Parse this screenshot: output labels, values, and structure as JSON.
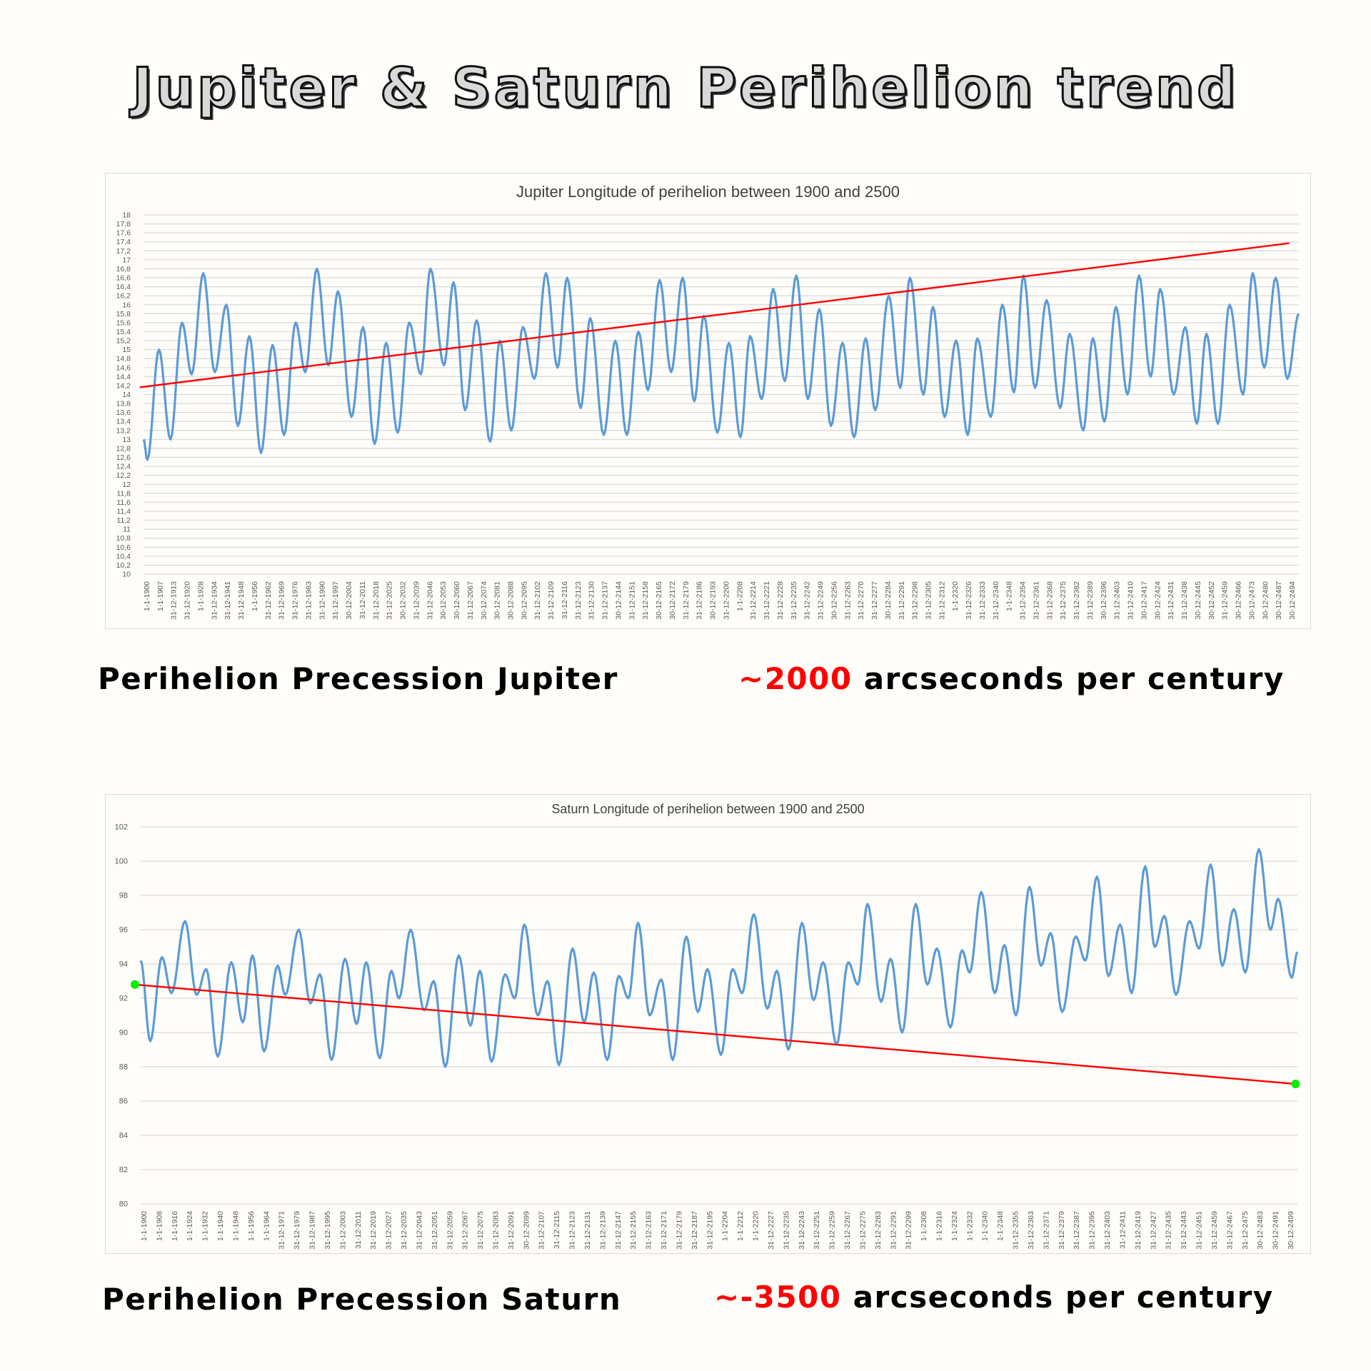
{
  "title": "Jupiter & Saturn Perihelion trend",
  "captions": {
    "jupiter_label": "Perihelion Precession Jupiter",
    "jupiter_tilde": "~",
    "jupiter_value": "2000",
    "jupiter_unit": "arcseconds per century",
    "saturn_label": "Perihelion Precession Saturn",
    "saturn_tilde": "~",
    "saturn_value": "-3500",
    "saturn_unit": "arcseconds per century"
  },
  "colors": {
    "series": "#5b9bd5",
    "trend": "#ff0000",
    "endpoints": "#00ee00",
    "highlight": "#ff0000",
    "grid": "#d9d9d9"
  },
  "chart_data": [
    {
      "type": "line",
      "title": "Jupiter Longitude of perihelion between 1900 and 2500",
      "ylim": [
        10,
        18
      ],
      "grid": true,
      "y_tick_labels": [
        "10",
        "10,2",
        "10,4",
        "10,6",
        "10,8",
        "11",
        "11,2",
        "11,4",
        "11,6",
        "11,8",
        "12",
        "12,2",
        "12,4",
        "12,6",
        "12,8",
        "13",
        "13,2",
        "13,4",
        "13,6",
        "13,8",
        "14",
        "14,2",
        "14,4",
        "14,6",
        "14,8",
        "15",
        "15,2",
        "15,4",
        "15,6",
        "15,8",
        "16",
        "16,2",
        "16,4",
        "16,6",
        "16,8",
        "17",
        "17,2",
        "17,4",
        "17,6",
        "17,8",
        "18"
      ],
      "x_tick_labels": [
        "1-1-1900",
        "1-1-1907",
        "31-12-1913",
        "31-12-1920",
        "1-1-1928",
        "31-12-1934",
        "31-12-1941",
        "31-12-1948",
        "1-1-1956",
        "31-12-1962",
        "31-12-1969",
        "31-12-1976",
        "31-12-1983",
        "31-12-1990",
        "31-12-1997",
        "30-12-2004",
        "31-12-2011",
        "31-12-2018",
        "31-12-2025",
        "30-12-2032",
        "31-12-2039",
        "31-12-2046",
        "30-12-2053",
        "30-12-2060",
        "31-12-2067",
        "30-12-2074",
        "30-12-2081",
        "30-12-2088",
        "30-12-2095",
        "31-12-2102",
        "31-12-2109",
        "31-12-2116",
        "31-12-2123",
        "31-12-2130",
        "31-12-2137",
        "30-12-2144",
        "31-12-2151",
        "31-12-2158",
        "30-12-2165",
        "30-12-2172",
        "31-12-2179",
        "31-12-2186",
        "30-12-2193",
        "31-12-2200",
        "1-1-2208",
        "31-12-2214",
        "31-12-2221",
        "31-12-2228",
        "31-12-2235",
        "31-12-2242",
        "31-12-2249",
        "30-12-2256",
        "31-12-2263",
        "31-12-2270",
        "31-12-2277",
        "30-12-2284",
        "31-12-2291",
        "31-12-2298",
        "31-12-2305",
        "31-12-2312",
        "1-1-2320",
        "31-12-2326",
        "31-12-2333",
        "31-12-2340",
        "1-1-2348",
        "31-12-2354",
        "31-12-2361",
        "31-12-2368",
        "31-12-2375",
        "31-12-2382",
        "31-12-2389",
        "30-12-2396",
        "31-12-2403",
        "31-12-2410",
        "30-12-2417",
        "30-12-2424",
        "31-12-2431",
        "31-12-2438",
        "30-12-2445",
        "30-12-2452",
        "31-12-2459",
        "30-12-2466",
        "30-12-2473",
        "30-12-2480",
        "30-12-2487",
        "30-12-2494"
      ],
      "xlim": [
        1900,
        2500
      ],
      "series": [
        {
          "points": [
            [
              1900,
              13.0
            ],
            [
              1902,
              12.55
            ],
            [
              1908,
              15.0
            ],
            [
              1914,
              13.0
            ],
            [
              1920,
              15.6
            ],
            [
              1925,
              14.45
            ],
            [
              1931,
              16.7
            ],
            [
              1937,
              14.5
            ],
            [
              1943,
              16.0
            ],
            [
              1949,
              13.3
            ],
            [
              1955,
              15.3
            ],
            [
              1961,
              12.7
            ],
            [
              1967,
              15.1
            ],
            [
              1973,
              13.1
            ],
            [
              1979,
              15.6
            ],
            [
              1984,
              14.5
            ],
            [
              1990,
              16.8
            ],
            [
              1996,
              14.65
            ],
            [
              2001,
              16.3
            ],
            [
              2008,
              13.5
            ],
            [
              2014,
              15.5
            ],
            [
              2020,
              12.9
            ],
            [
              2026,
              15.15
            ],
            [
              2032,
              13.15
            ],
            [
              2038,
              15.6
            ],
            [
              2044,
              14.45
            ],
            [
              2049,
              16.8
            ],
            [
              2056,
              14.65
            ],
            [
              2061,
              16.5
            ],
            [
              2067,
              13.65
            ],
            [
              2073,
              15.65
            ],
            [
              2080,
              12.95
            ],
            [
              2085,
              15.2
            ],
            [
              2091,
              13.2
            ],
            [
              2097,
              15.5
            ],
            [
              2103,
              14.35
            ],
            [
              2109,
              16.7
            ],
            [
              2115,
              14.6
            ],
            [
              2120,
              16.6
            ],
            [
              2127,
              13.7
            ],
            [
              2132,
              15.7
            ],
            [
              2139,
              13.1
            ],
            [
              2145,
              15.2
            ],
            [
              2151,
              13.1
            ],
            [
              2157,
              15.4
            ],
            [
              2162,
              14.1
            ],
            [
              2168,
              16.55
            ],
            [
              2174,
              14.5
            ],
            [
              2180,
              16.6
            ],
            [
              2186,
              13.85
            ],
            [
              2191,
              15.75
            ],
            [
              2198,
              13.15
            ],
            [
              2204,
              15.15
            ],
            [
              2210,
              13.05
            ],
            [
              2215,
              15.3
            ],
            [
              2221,
              13.9
            ],
            [
              2227,
              16.35
            ],
            [
              2233,
              14.3
            ],
            [
              2239,
              16.65
            ],
            [
              2245,
              13.9
            ],
            [
              2251,
              15.9
            ],
            [
              2257,
              13.3
            ],
            [
              2263,
              15.15
            ],
            [
              2269,
              13.05
            ],
            [
              2275,
              15.25
            ],
            [
              2280,
              13.65
            ],
            [
              2287,
              16.2
            ],
            [
              2293,
              14.15
            ],
            [
              2298,
              16.6
            ],
            [
              2305,
              14.0
            ],
            [
              2310,
              15.95
            ],
            [
              2316,
              13.5
            ],
            [
              2322,
              15.2
            ],
            [
              2328,
              13.1
            ],
            [
              2333,
              15.25
            ],
            [
              2340,
              13.5
            ],
            [
              2346,
              16.0
            ],
            [
              2352,
              14.05
            ],
            [
              2357,
              16.65
            ],
            [
              2363,
              14.15
            ],
            [
              2369,
              16.1
            ],
            [
              2376,
              13.7
            ],
            [
              2381,
              15.35
            ],
            [
              2388,
              13.2
            ],
            [
              2393,
              15.25
            ],
            [
              2399,
              13.4
            ],
            [
              2405,
              15.95
            ],
            [
              2411,
              14.0
            ],
            [
              2417,
              16.65
            ],
            [
              2423,
              14.4
            ],
            [
              2428,
              16.35
            ],
            [
              2435,
              14.0
            ],
            [
              2441,
              15.5
            ],
            [
              2447,
              13.35
            ],
            [
              2452,
              15.35
            ],
            [
              2458,
              13.35
            ],
            [
              2464,
              16.0
            ],
            [
              2471,
              14.0
            ],
            [
              2476,
              16.7
            ],
            [
              2482,
              14.6
            ],
            [
              2488,
              16.6
            ],
            [
              2494,
              14.35
            ],
            [
              2500,
              15.8
            ]
          ]
        }
      ],
      "trendline": [
        [
          1898,
          14.16
        ],
        [
          2495,
          17.37
        ]
      ]
    },
    {
      "type": "line",
      "title": "Saturn Longitude of perihelion between 1900 and 2500",
      "ylim": [
        80,
        102
      ],
      "grid": true,
      "y_tick_labels": [
        "80",
        "82",
        "84",
        "86",
        "88",
        "90",
        "92",
        "94",
        "96",
        "98",
        "100",
        "102"
      ],
      "x_tick_labels": [
        "1-1-1900",
        "1-1-1908",
        "1-1-1916",
        "1-1-1924",
        "1-1-1932",
        "1-1-1940",
        "1-1-1948",
        "1-1-1956",
        "1-1-1964",
        "31-12-1971",
        "31-12-1979",
        "31-12-1987",
        "31-12-1995",
        "31-12-2003",
        "31-12-2011",
        "31-12-2019",
        "31-12-2027",
        "31-12-2035",
        "31-12-2043",
        "31-12-2051",
        "31-12-2059",
        "31-12-2067",
        "31-12-2075",
        "31-12-2083",
        "31-12-2091",
        "30-12-2099",
        "31-12-2107",
        "31-12-2115",
        "31-12-2123",
        "31-12-2131",
        "31-12-2139",
        "31-12-2147",
        "31-12-2155",
        "31-12-2163",
        "31-12-2171",
        "31-12-2179",
        "31-12-2187",
        "31-12-2195",
        "1-1-2204",
        "1-1-2212",
        "1-1-2220",
        "31-12-2227",
        "31-12-2235",
        "31-12-2243",
        "31-12-2251",
        "31-12-2259",
        "31-12-2267",
        "31-12-2275",
        "31-12-2283",
        "31-12-2291",
        "31-12-2299",
        "1-1-2308",
        "1-1-2316",
        "1-1-2324",
        "1-1-2332",
        "1-1-2340",
        "1-1-2348",
        "31-12-2355",
        "31-12-2363",
        "31-12-2371",
        "31-12-2379",
        "31-12-2387",
        "31-12-2395",
        "31-12-2403",
        "31-12-2411",
        "31-12-2419",
        "31-12-2427",
        "31-12-2435",
        "31-12-2443",
        "31-12-2451",
        "31-12-2459",
        "31-12-2467",
        "31-12-2475",
        "30-12-2483",
        "30-12-2491",
        "30-12-2499"
      ],
      "xlim": [
        1900,
        2500
      ],
      "series": [
        {
          "points": [
            [
              1900,
              94.2
            ],
            [
              1905,
              89.5
            ],
            [
              1911,
              94.4
            ],
            [
              1916,
              92.3
            ],
            [
              1923,
              96.5
            ],
            [
              1929,
              92.2
            ],
            [
              1934,
              93.7
            ],
            [
              1940,
              88.6
            ],
            [
              1947,
              94.1
            ],
            [
              1953,
              90.6
            ],
            [
              1958,
              94.5
            ],
            [
              1964,
              88.9
            ],
            [
              1971,
              93.9
            ],
            [
              1975,
              92.2
            ],
            [
              1982,
              96.0
            ],
            [
              1988,
              91.7
            ],
            [
              1993,
              93.4
            ],
            [
              1999,
              88.4
            ],
            [
              2006,
              94.3
            ],
            [
              2012,
              90.5
            ],
            [
              2017,
              94.1
            ],
            [
              2024,
              88.5
            ],
            [
              2030,
              93.6
            ],
            [
              2034,
              92.0
            ],
            [
              2040,
              96.0
            ],
            [
              2047,
              91.3
            ],
            [
              2052,
              93.0
            ],
            [
              2058,
              88.0
            ],
            [
              2065,
              94.5
            ],
            [
              2071,
              90.4
            ],
            [
              2076,
              93.6
            ],
            [
              2082,
              88.3
            ],
            [
              2089,
              93.4
            ],
            [
              2094,
              92.0
            ],
            [
              2099,
              96.3
            ],
            [
              2106,
              91.0
            ],
            [
              2111,
              93.0
            ],
            [
              2117,
              88.1
            ],
            [
              2124,
              94.9
            ],
            [
              2130,
              90.6
            ],
            [
              2135,
              93.5
            ],
            [
              2142,
              88.4
            ],
            [
              2148,
              93.3
            ],
            [
              2153,
              92.0
            ],
            [
              2158,
              96.4
            ],
            [
              2164,
              91.0
            ],
            [
              2170,
              93.1
            ],
            [
              2176,
              88.4
            ],
            [
              2183,
              95.6
            ],
            [
              2189,
              91.2
            ],
            [
              2194,
              93.7
            ],
            [
              2201,
              88.7
            ],
            [
              2207,
              93.7
            ],
            [
              2212,
              92.3
            ],
            [
              2218,
              96.9
            ],
            [
              2225,
              91.4
            ],
            [
              2230,
              93.6
            ],
            [
              2236,
              89.0
            ],
            [
              2243,
              96.4
            ],
            [
              2249,
              91.9
            ],
            [
              2254,
              94.1
            ],
            [
              2261,
              89.3
            ],
            [
              2267,
              94.1
            ],
            [
              2272,
              92.8
            ],
            [
              2277,
              97.5
            ],
            [
              2284,
              91.8
            ],
            [
              2289,
              94.3
            ],
            [
              2295,
              90.0
            ],
            [
              2302,
              97.5
            ],
            [
              2308,
              92.8
            ],
            [
              2313,
              94.9
            ],
            [
              2320,
              90.3
            ],
            [
              2326,
              94.8
            ],
            [
              2330,
              93.5
            ],
            [
              2336,
              98.2
            ],
            [
              2343,
              92.3
            ],
            [
              2348,
              95.1
            ],
            [
              2354,
              91.0
            ],
            [
              2361,
              98.5
            ],
            [
              2367,
              93.9
            ],
            [
              2372,
              95.8
            ],
            [
              2378,
              91.2
            ],
            [
              2385,
              95.6
            ],
            [
              2390,
              94.2
            ],
            [
              2396,
              99.1
            ],
            [
              2402,
              93.3
            ],
            [
              2408,
              96.3
            ],
            [
              2414,
              92.3
            ],
            [
              2421,
              99.7
            ],
            [
              2426,
              95.0
            ],
            [
              2431,
              96.8
            ],
            [
              2437,
              92.2
            ],
            [
              2444,
              96.5
            ],
            [
              2449,
              94.9
            ],
            [
              2455,
              99.8
            ],
            [
              2461,
              93.9
            ],
            [
              2467,
              97.2
            ],
            [
              2473,
              93.5
            ],
            [
              2480,
              100.7
            ],
            [
              2486,
              96.0
            ],
            [
              2490,
              97.8
            ],
            [
              2497,
              93.2
            ],
            [
              2500,
              94.7
            ]
          ]
        }
      ],
      "trendline": [
        [
          1897,
          92.8
        ],
        [
          2499,
          87.0
        ]
      ],
      "trend_endpoints": true
    }
  ]
}
